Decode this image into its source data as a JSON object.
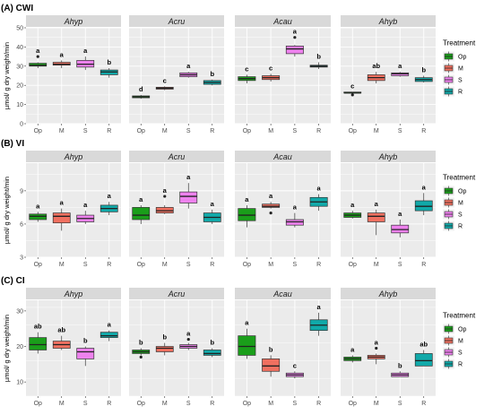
{
  "legend": {
    "title": "Treatment",
    "items": [
      {
        "label": "Op",
        "color": "#1a9e1a"
      },
      {
        "label": "M",
        "color": "#f07060"
      },
      {
        "label": "S",
        "color": "#ee82ee"
      },
      {
        "label": "R",
        "color": "#11a9a9"
      }
    ]
  },
  "chart_data": [
    {
      "type": "box",
      "title": "(A) CWI",
      "ylabel": "µmol/ g dry weight/min",
      "ylim": [
        0,
        50
      ],
      "yticks": [
        0,
        10,
        20,
        30,
        40,
        50
      ],
      "categories": [
        "Op",
        "M",
        "S",
        "R"
      ],
      "facets": [
        {
          "name": "Ahyp",
          "boxes": [
            {
              "q1": 30,
              "median": 30.5,
              "q3": 31.5,
              "min": 29,
              "max": 32,
              "outliers": [
                35
              ],
              "letter": "a"
            },
            {
              "q1": 30.5,
              "median": 31,
              "q3": 32,
              "min": 29,
              "max": 33,
              "outliers": [],
              "letter": "a"
            },
            {
              "q1": 29.5,
              "median": 31,
              "q3": 33,
              "min": 28,
              "max": 35,
              "outliers": [],
              "letter": "a"
            },
            {
              "q1": 25.5,
              "median": 27,
              "q3": 28,
              "min": 24,
              "max": 29,
              "outliers": [],
              "letter": "b"
            }
          ]
        },
        {
          "name": "Acru",
          "boxes": [
            {
              "q1": 13.5,
              "median": 14,
              "q3": 14.5,
              "min": 13,
              "max": 15,
              "outliers": [],
              "letter": "d"
            },
            {
              "q1": 18,
              "median": 18.5,
              "q3": 19,
              "min": 17.5,
              "max": 19.5,
              "outliers": [],
              "letter": "c"
            },
            {
              "q1": 24.5,
              "median": 25.5,
              "q3": 26.5,
              "min": 24,
              "max": 27,
              "outliers": [],
              "letter": "a"
            },
            {
              "q1": 20.5,
              "median": 21.5,
              "q3": 22.5,
              "min": 20,
              "max": 23,
              "outliers": [],
              "letter": "b"
            }
          ]
        },
        {
          "name": "Acau",
          "boxes": [
            {
              "q1": 22.5,
              "median": 23.5,
              "q3": 24.5,
              "min": 21,
              "max": 25.5,
              "outliers": [],
              "letter": "c"
            },
            {
              "q1": 23,
              "median": 24,
              "q3": 25,
              "min": 22,
              "max": 26,
              "outliers": [],
              "letter": "c"
            },
            {
              "q1": 36.5,
              "median": 39,
              "q3": 40.5,
              "min": 35,
              "max": 41,
              "outliers": [
                45
              ],
              "letter": "a"
            },
            {
              "q1": 29.5,
              "median": 30,
              "q3": 30.5,
              "min": 28.5,
              "max": 32,
              "outliers": [],
              "letter": "b"
            }
          ]
        },
        {
          "name": "Ahyb",
          "boxes": [
            {
              "q1": 16,
              "median": 16,
              "q3": 16.5,
              "min": 15.5,
              "max": 16.5,
              "outliers": [
                15
              ],
              "letter": "c"
            },
            {
              "q1": 22.5,
              "median": 24,
              "q3": 25.5,
              "min": 21,
              "max": 27,
              "outliers": [],
              "letter": "ab"
            },
            {
              "q1": 25,
              "median": 26,
              "q3": 26.5,
              "min": 24.5,
              "max": 27,
              "outliers": [],
              "letter": "a"
            },
            {
              "q1": 22,
              "median": 23,
              "q3": 24,
              "min": 21.5,
              "max": 25,
              "outliers": [],
              "letter": "b"
            }
          ]
        }
      ]
    },
    {
      "type": "box",
      "title": "(B) VI",
      "ylabel": "µmol/ g dry weight/min",
      "ylim": [
        3,
        11.5
      ],
      "yticks": [
        3,
        6,
        9
      ],
      "categories": [
        "Op",
        "M",
        "S",
        "R"
      ],
      "facets": [
        {
          "name": "Ahyp",
          "boxes": [
            {
              "q1": 6.4,
              "median": 6.7,
              "q3": 6.9,
              "min": 6.2,
              "max": 7.1,
              "outliers": [],
              "letter": "a"
            },
            {
              "q1": 6.1,
              "median": 6.7,
              "q3": 7.0,
              "min": 5.4,
              "max": 7.4,
              "outliers": [],
              "letter": "a"
            },
            {
              "q1": 6.2,
              "median": 6.5,
              "q3": 6.8,
              "min": 6.0,
              "max": 7.2,
              "outliers": [],
              "letter": "a"
            },
            {
              "q1": 7.1,
              "median": 7.4,
              "q3": 7.7,
              "min": 6.8,
              "max": 8.0,
              "outliers": [],
              "letter": "a"
            }
          ]
        },
        {
          "name": "Acru",
          "boxes": [
            {
              "q1": 6.4,
              "median": 6.8,
              "q3": 7.5,
              "min": 6.0,
              "max": 7.7,
              "outliers": [],
              "letter": "a"
            },
            {
              "q1": 7.0,
              "median": 7.2,
              "q3": 7.5,
              "min": 6.9,
              "max": 7.7,
              "outliers": [
                8.5
              ],
              "letter": "a"
            },
            {
              "q1": 7.9,
              "median": 8.5,
              "q3": 8.9,
              "min": 7.4,
              "max": 9.7,
              "outliers": [],
              "letter": "a"
            },
            {
              "q1": 6.2,
              "median": 6.6,
              "q3": 7.0,
              "min": 6.0,
              "max": 7.3,
              "outliers": [],
              "letter": "a"
            }
          ]
        },
        {
          "name": "Acau",
          "boxes": [
            {
              "q1": 6.3,
              "median": 6.8,
              "q3": 7.4,
              "min": 5.7,
              "max": 7.7,
              "outliers": [],
              "letter": "a"
            },
            {
              "q1": 7.5,
              "median": 7.6,
              "q3": 7.8,
              "min": 7.4,
              "max": 8.0,
              "outliers": [
                7.0
              ],
              "letter": "a"
            },
            {
              "q1": 5.9,
              "median": 6.2,
              "q3": 6.4,
              "min": 5.7,
              "max": 7.0,
              "outliers": [],
              "letter": "a"
            },
            {
              "q1": 7.6,
              "median": 8.0,
              "q3": 8.4,
              "min": 7.2,
              "max": 8.7,
              "outliers": [],
              "letter": "a"
            }
          ]
        },
        {
          "name": "Ahyb",
          "boxes": [
            {
              "q1": 6.6,
              "median": 6.8,
              "q3": 7.0,
              "min": 6.5,
              "max": 7.2,
              "outliers": [],
              "letter": "a"
            },
            {
              "q1": 6.2,
              "median": 6.7,
              "q3": 7.0,
              "min": 5.0,
              "max": 7.3,
              "outliers": [],
              "letter": "a"
            },
            {
              "q1": 5.2,
              "median": 5.5,
              "q3": 5.9,
              "min": 4.8,
              "max": 6.4,
              "outliers": [],
              "letter": "a"
            },
            {
              "q1": 7.2,
              "median": 7.6,
              "q3": 8.1,
              "min": 6.8,
              "max": 8.8,
              "outliers": [],
              "letter": "a"
            }
          ]
        }
      ]
    },
    {
      "type": "box",
      "title": "(C) CI",
      "ylabel": "µmol/ g dry weight/min",
      "ylim": [
        6,
        33
      ],
      "yticks": [
        10,
        20,
        30
      ],
      "categories": [
        "Op",
        "M",
        "S",
        "R"
      ],
      "facets": [
        {
          "name": "Ahyp",
          "boxes": [
            {
              "q1": 19,
              "median": 20.5,
              "q3": 22.5,
              "min": 18,
              "max": 24,
              "outliers": [],
              "letter": "ab"
            },
            {
              "q1": 19.5,
              "median": 20.5,
              "q3": 21.5,
              "min": 19,
              "max": 23,
              "outliers": [],
              "letter": "ab"
            },
            {
              "q1": 16.5,
              "median": 18.5,
              "q3": 19.5,
              "min": 14.5,
              "max": 20,
              "outliers": [],
              "letter": "b"
            },
            {
              "q1": 22.5,
              "median": 23,
              "q3": 24,
              "min": 21.5,
              "max": 24.5,
              "outliers": [],
              "letter": "a"
            }
          ]
        },
        {
          "name": "Acru",
          "boxes": [
            {
              "q1": 18,
              "median": 18.5,
              "q3": 19,
              "min": 17.5,
              "max": 19.5,
              "outliers": [
                17
              ],
              "letter": "b"
            },
            {
              "q1": 18.5,
              "median": 19.5,
              "q3": 20,
              "min": 17.5,
              "max": 21,
              "outliers": [],
              "letter": "b"
            },
            {
              "q1": 19.5,
              "median": 20,
              "q3": 20.5,
              "min": 19,
              "max": 21,
              "outliers": [
                22
              ],
              "letter": "a"
            },
            {
              "q1": 17.5,
              "median": 18,
              "q3": 19,
              "min": 17,
              "max": 19.5,
              "outliers": [],
              "letter": "b"
            }
          ]
        },
        {
          "name": "Acau",
          "boxes": [
            {
              "q1": 17.5,
              "median": 20,
              "q3": 23,
              "min": 16.5,
              "max": 25,
              "outliers": [],
              "letter": "a"
            },
            {
              "q1": 13,
              "median": 14.5,
              "q3": 16.5,
              "min": 11.5,
              "max": 17.5,
              "outliers": [],
              "letter": "b"
            },
            {
              "q1": 11.5,
              "median": 12,
              "q3": 12.5,
              "min": 11,
              "max": 13,
              "outliers": [],
              "letter": "c"
            },
            {
              "q1": 24.5,
              "median": 26,
              "q3": 27.5,
              "min": 23,
              "max": 29.5,
              "outliers": [],
              "letter": "a"
            }
          ]
        },
        {
          "name": "Ahyb",
          "boxes": [
            {
              "q1": 16,
              "median": 16.5,
              "q3": 17,
              "min": 15.5,
              "max": 17.5,
              "outliers": [],
              "letter": "a"
            },
            {
              "q1": 16.5,
              "median": 17,
              "q3": 17.5,
              "min": 15,
              "max": 18,
              "outliers": [
                19.5
              ],
              "letter": "a"
            },
            {
              "q1": 11.5,
              "median": 12,
              "q3": 12.5,
              "min": 11.5,
              "max": 13,
              "outliers": [],
              "letter": "b"
            },
            {
              "q1": 14.5,
              "median": 16,
              "q3": 18,
              "min": 14.5,
              "max": 19,
              "outliers": [],
              "letter": "ab"
            }
          ]
        }
      ]
    }
  ]
}
